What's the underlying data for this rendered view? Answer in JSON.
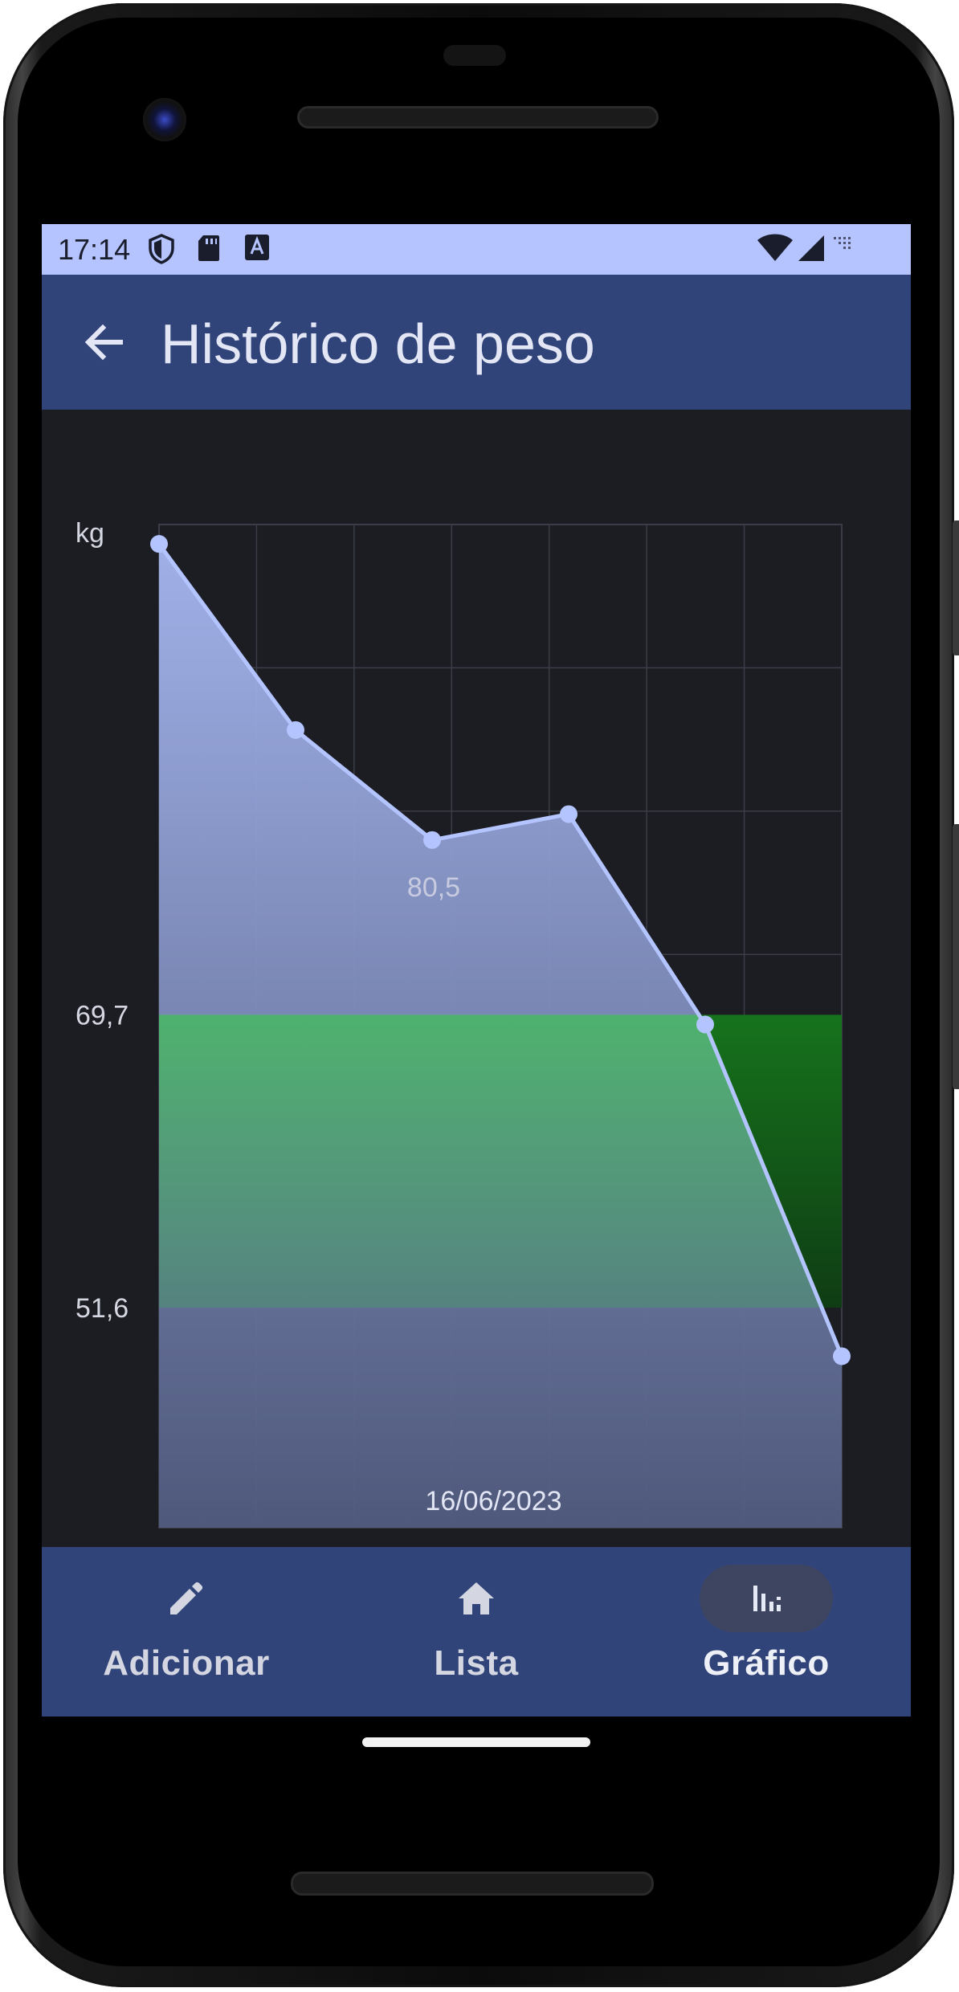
{
  "status_bar": {
    "time": "17:14",
    "left_icons": [
      "shield-icon",
      "sd-card-icon",
      "a-badge-icon"
    ],
    "right_icons": [
      "wifi-icon",
      "cell-signal-icon",
      "network-icon"
    ]
  },
  "app_bar": {
    "back_icon": "arrow-left-icon",
    "title": "Histórico de peso"
  },
  "chart_data": {
    "type": "area",
    "ylabel": "kg",
    "xlabel": "",
    "selected_date": "16/06/2023",
    "series": [
      {
        "values": [
          98.8,
          87.3,
          80.5,
          82.1,
          69.1,
          48.6
        ]
      }
    ],
    "highlight_point": {
      "index": 2,
      "label": "80,5"
    },
    "band": {
      "min": 51.6,
      "max": 69.7,
      "color": "#1f8a2c"
    },
    "band_labels": [
      "69,7",
      "51,6"
    ],
    "ylim": [
      38.0,
      100.0
    ],
    "grid": true,
    "grid_columns": 7,
    "grid_rows": 7,
    "colors": {
      "line": "#b3c4ff",
      "fill_top": "#a7b8f2",
      "fill_bottom": "#525c80",
      "grid": "#3a3d47"
    }
  },
  "bottom_nav": {
    "items": [
      {
        "label": "Adicionar",
        "icon": "pencil-icon",
        "active": false
      },
      {
        "label": "Lista",
        "icon": "home-icon",
        "active": false
      },
      {
        "label": "Gráfico",
        "icon": "bar-chart-icon",
        "active": true
      }
    ]
  }
}
